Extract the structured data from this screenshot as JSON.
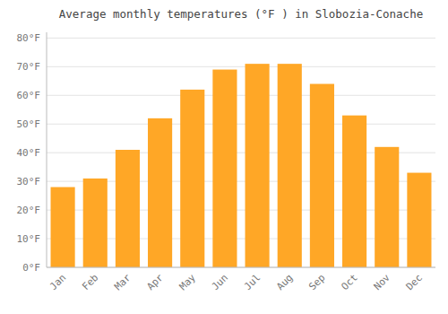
{
  "chart_data": {
    "type": "bar",
    "title": "Average monthly temperatures (°F ) in Slobozia-Conache",
    "categories": [
      "Jan",
      "Feb",
      "Mar",
      "Apr",
      "May",
      "Jun",
      "Jul",
      "Aug",
      "Sep",
      "Oct",
      "Nov",
      "Dec"
    ],
    "values": [
      28,
      31,
      41,
      52,
      62,
      69,
      71,
      71,
      64,
      53,
      42,
      33
    ],
    "color": "#FFA726",
    "ylim": [
      0,
      82
    ],
    "yticks": [
      {
        "value": 0,
        "label": "0°F"
      },
      {
        "value": 10,
        "label": "10°F"
      },
      {
        "value": 20,
        "label": "20°F"
      },
      {
        "value": 30,
        "label": "30°F"
      },
      {
        "value": 40,
        "label": "40°F"
      },
      {
        "value": 50,
        "label": "50°F"
      },
      {
        "value": 60,
        "label": "60°F"
      },
      {
        "value": 70,
        "label": "70°F"
      },
      {
        "value": 80,
        "label": "80°F"
      }
    ],
    "grid": true
  }
}
